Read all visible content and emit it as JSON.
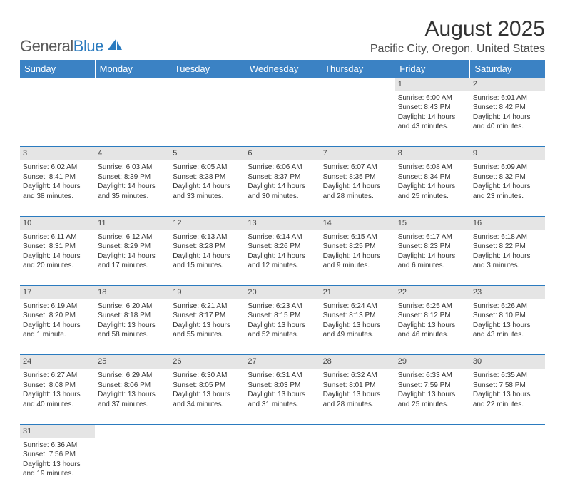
{
  "logo": {
    "part1": "General",
    "part2": "Blue"
  },
  "title": "August 2025",
  "location": "Pacific City, Oregon, United States",
  "colors": {
    "header_bg": "#3b82c4",
    "header_text": "#ffffff",
    "daynum_bg": "#e5e5e5",
    "border": "#2b7bbf",
    "text": "#333333",
    "logo_gray": "#5a5a5a",
    "logo_blue": "#2b7bbf"
  },
  "day_headers": [
    "Sunday",
    "Monday",
    "Tuesday",
    "Wednesday",
    "Thursday",
    "Friday",
    "Saturday"
  ],
  "weeks": [
    {
      "nums": [
        "",
        "",
        "",
        "",
        "",
        "1",
        "2"
      ],
      "cells": [
        null,
        null,
        null,
        null,
        null,
        {
          "sunrise": "Sunrise: 6:00 AM",
          "sunset": "Sunset: 8:43 PM",
          "daylight1": "Daylight: 14 hours",
          "daylight2": "and 43 minutes."
        },
        {
          "sunrise": "Sunrise: 6:01 AM",
          "sunset": "Sunset: 8:42 PM",
          "daylight1": "Daylight: 14 hours",
          "daylight2": "and 40 minutes."
        }
      ]
    },
    {
      "nums": [
        "3",
        "4",
        "5",
        "6",
        "7",
        "8",
        "9"
      ],
      "cells": [
        {
          "sunrise": "Sunrise: 6:02 AM",
          "sunset": "Sunset: 8:41 PM",
          "daylight1": "Daylight: 14 hours",
          "daylight2": "and 38 minutes."
        },
        {
          "sunrise": "Sunrise: 6:03 AM",
          "sunset": "Sunset: 8:39 PM",
          "daylight1": "Daylight: 14 hours",
          "daylight2": "and 35 minutes."
        },
        {
          "sunrise": "Sunrise: 6:05 AM",
          "sunset": "Sunset: 8:38 PM",
          "daylight1": "Daylight: 14 hours",
          "daylight2": "and 33 minutes."
        },
        {
          "sunrise": "Sunrise: 6:06 AM",
          "sunset": "Sunset: 8:37 PM",
          "daylight1": "Daylight: 14 hours",
          "daylight2": "and 30 minutes."
        },
        {
          "sunrise": "Sunrise: 6:07 AM",
          "sunset": "Sunset: 8:35 PM",
          "daylight1": "Daylight: 14 hours",
          "daylight2": "and 28 minutes."
        },
        {
          "sunrise": "Sunrise: 6:08 AM",
          "sunset": "Sunset: 8:34 PM",
          "daylight1": "Daylight: 14 hours",
          "daylight2": "and 25 minutes."
        },
        {
          "sunrise": "Sunrise: 6:09 AM",
          "sunset": "Sunset: 8:32 PM",
          "daylight1": "Daylight: 14 hours",
          "daylight2": "and 23 minutes."
        }
      ]
    },
    {
      "nums": [
        "10",
        "11",
        "12",
        "13",
        "14",
        "15",
        "16"
      ],
      "cells": [
        {
          "sunrise": "Sunrise: 6:11 AM",
          "sunset": "Sunset: 8:31 PM",
          "daylight1": "Daylight: 14 hours",
          "daylight2": "and 20 minutes."
        },
        {
          "sunrise": "Sunrise: 6:12 AM",
          "sunset": "Sunset: 8:29 PM",
          "daylight1": "Daylight: 14 hours",
          "daylight2": "and 17 minutes."
        },
        {
          "sunrise": "Sunrise: 6:13 AM",
          "sunset": "Sunset: 8:28 PM",
          "daylight1": "Daylight: 14 hours",
          "daylight2": "and 15 minutes."
        },
        {
          "sunrise": "Sunrise: 6:14 AM",
          "sunset": "Sunset: 8:26 PM",
          "daylight1": "Daylight: 14 hours",
          "daylight2": "and 12 minutes."
        },
        {
          "sunrise": "Sunrise: 6:15 AM",
          "sunset": "Sunset: 8:25 PM",
          "daylight1": "Daylight: 14 hours",
          "daylight2": "and 9 minutes."
        },
        {
          "sunrise": "Sunrise: 6:17 AM",
          "sunset": "Sunset: 8:23 PM",
          "daylight1": "Daylight: 14 hours",
          "daylight2": "and 6 minutes."
        },
        {
          "sunrise": "Sunrise: 6:18 AM",
          "sunset": "Sunset: 8:22 PM",
          "daylight1": "Daylight: 14 hours",
          "daylight2": "and 3 minutes."
        }
      ]
    },
    {
      "nums": [
        "17",
        "18",
        "19",
        "20",
        "21",
        "22",
        "23"
      ],
      "cells": [
        {
          "sunrise": "Sunrise: 6:19 AM",
          "sunset": "Sunset: 8:20 PM",
          "daylight1": "Daylight: 14 hours",
          "daylight2": "and 1 minute."
        },
        {
          "sunrise": "Sunrise: 6:20 AM",
          "sunset": "Sunset: 8:18 PM",
          "daylight1": "Daylight: 13 hours",
          "daylight2": "and 58 minutes."
        },
        {
          "sunrise": "Sunrise: 6:21 AM",
          "sunset": "Sunset: 8:17 PM",
          "daylight1": "Daylight: 13 hours",
          "daylight2": "and 55 minutes."
        },
        {
          "sunrise": "Sunrise: 6:23 AM",
          "sunset": "Sunset: 8:15 PM",
          "daylight1": "Daylight: 13 hours",
          "daylight2": "and 52 minutes."
        },
        {
          "sunrise": "Sunrise: 6:24 AM",
          "sunset": "Sunset: 8:13 PM",
          "daylight1": "Daylight: 13 hours",
          "daylight2": "and 49 minutes."
        },
        {
          "sunrise": "Sunrise: 6:25 AM",
          "sunset": "Sunset: 8:12 PM",
          "daylight1": "Daylight: 13 hours",
          "daylight2": "and 46 minutes."
        },
        {
          "sunrise": "Sunrise: 6:26 AM",
          "sunset": "Sunset: 8:10 PM",
          "daylight1": "Daylight: 13 hours",
          "daylight2": "and 43 minutes."
        }
      ]
    },
    {
      "nums": [
        "24",
        "25",
        "26",
        "27",
        "28",
        "29",
        "30"
      ],
      "cells": [
        {
          "sunrise": "Sunrise: 6:27 AM",
          "sunset": "Sunset: 8:08 PM",
          "daylight1": "Daylight: 13 hours",
          "daylight2": "and 40 minutes."
        },
        {
          "sunrise": "Sunrise: 6:29 AM",
          "sunset": "Sunset: 8:06 PM",
          "daylight1": "Daylight: 13 hours",
          "daylight2": "and 37 minutes."
        },
        {
          "sunrise": "Sunrise: 6:30 AM",
          "sunset": "Sunset: 8:05 PM",
          "daylight1": "Daylight: 13 hours",
          "daylight2": "and 34 minutes."
        },
        {
          "sunrise": "Sunrise: 6:31 AM",
          "sunset": "Sunset: 8:03 PM",
          "daylight1": "Daylight: 13 hours",
          "daylight2": "and 31 minutes."
        },
        {
          "sunrise": "Sunrise: 6:32 AM",
          "sunset": "Sunset: 8:01 PM",
          "daylight1": "Daylight: 13 hours",
          "daylight2": "and 28 minutes."
        },
        {
          "sunrise": "Sunrise: 6:33 AM",
          "sunset": "Sunset: 7:59 PM",
          "daylight1": "Daylight: 13 hours",
          "daylight2": "and 25 minutes."
        },
        {
          "sunrise": "Sunrise: 6:35 AM",
          "sunset": "Sunset: 7:58 PM",
          "daylight1": "Daylight: 13 hours",
          "daylight2": "and 22 minutes."
        }
      ]
    },
    {
      "nums": [
        "31",
        "",
        "",
        "",
        "",
        "",
        ""
      ],
      "cells": [
        {
          "sunrise": "Sunrise: 6:36 AM",
          "sunset": "Sunset: 7:56 PM",
          "daylight1": "Daylight: 13 hours",
          "daylight2": "and 19 minutes."
        },
        null,
        null,
        null,
        null,
        null,
        null
      ],
      "last": true
    }
  ]
}
